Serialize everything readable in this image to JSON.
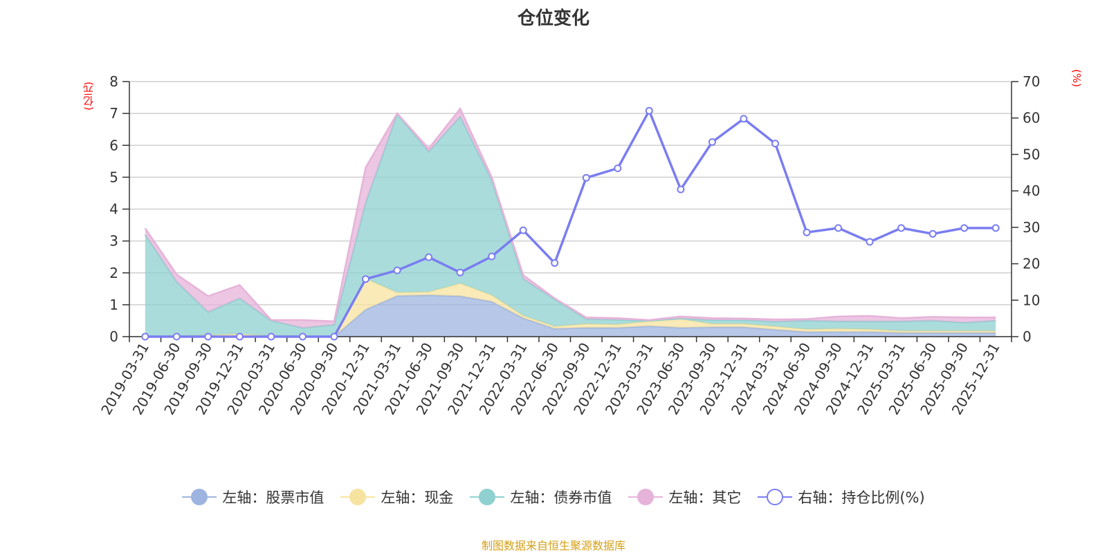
{
  "page": {
    "title": "仓位变化",
    "left_unit": "(亿元)",
    "right_unit": "(%)",
    "source_note": "制图数据来自恒生聚源数据库"
  },
  "legend": [
    {
      "label": "左轴：股票市值",
      "color": "#9db4e0",
      "shape": "filled-circle"
    },
    {
      "label": "左轴：现金",
      "color": "#f7e3a0",
      "shape": "filled-circle"
    },
    {
      "label": "左轴：债券市值",
      "color": "#8fd0d0",
      "shape": "filled-circle"
    },
    {
      "label": "左轴：其它",
      "color": "#e6b3d9",
      "shape": "filled-circle"
    },
    {
      "label": "右轴：持仓比例(%)",
      "color": "#7a7df0",
      "shape": "hollow-circle"
    }
  ],
  "chart_data": {
    "type": "area",
    "title": "仓位变化",
    "categories": [
      "2019-03-31",
      "2019-06-30",
      "2019-09-30",
      "2019-12-31",
      "2020-03-31",
      "2020-06-30",
      "2020-09-30",
      "2020-12-31",
      "2021-03-31",
      "2021-06-30",
      "2021-09-30",
      "2021-12-31",
      "2022-03-31",
      "2022-06-30",
      "2022-09-30",
      "2022-12-31",
      "2023-03-31",
      "2023-06-30",
      "2023-09-30",
      "2023-12-31",
      "2024-03-31",
      "2024-06-30",
      "2024-09-30",
      "2024-12-31",
      "2025-03-31",
      "2025-06-30",
      "2025-09-30",
      "2025-12-31"
    ],
    "left_axis": {
      "label": "(亿元)",
      "min": 0,
      "max": 8,
      "ticks": [
        0,
        1,
        2,
        3,
        4,
        5,
        6,
        7,
        8
      ]
    },
    "right_axis": {
      "label": "(%)",
      "min": 0,
      "max": 70,
      "ticks": [
        0,
        10,
        20,
        30,
        40,
        50,
        60,
        70
      ]
    },
    "stacked": true,
    "series": [
      {
        "name": "左轴：股票市值",
        "axis": "left",
        "type": "area",
        "color": "#9db4e0",
        "values": [
          0,
          0,
          0,
          0,
          0,
          0,
          0,
          0.85,
          1.28,
          1.3,
          1.27,
          1.1,
          0.58,
          0.25,
          0.28,
          0.28,
          0.33,
          0.28,
          0.3,
          0.3,
          0.22,
          0.15,
          0.15,
          0.15,
          0.12,
          0.12,
          0.12,
          0.12
        ]
      },
      {
        "name": "左轴：现金",
        "axis": "left",
        "type": "area",
        "color": "#f7e3a0",
        "values": [
          0,
          0,
          0.05,
          0.08,
          0.02,
          0.02,
          0,
          0.97,
          0.1,
          0.1,
          0.4,
          0.2,
          0.08,
          0.07,
          0.12,
          0.1,
          0.15,
          0.27,
          0.1,
          0.1,
          0.1,
          0.08,
          0.1,
          0.08,
          0.06,
          0.06,
          0.06,
          0.06
        ]
      },
      {
        "name": "左轴：债券市值",
        "axis": "left",
        "type": "area",
        "color": "#8fd0d0",
        "values": [
          3.2,
          1.72,
          0.72,
          1.12,
          0.48,
          0.25,
          0.37,
          2.38,
          5.6,
          4.4,
          5.23,
          3.6,
          1.15,
          0.85,
          0.15,
          0.15,
          0.02,
          0.02,
          0.12,
          0.12,
          0.15,
          0.27,
          0.23,
          0.25,
          0.3,
          0.32,
          0.26,
          0.32
        ]
      },
      {
        "name": "左轴：其它",
        "axis": "left",
        "type": "area",
        "color": "#e6b3d9",
        "values": [
          0.2,
          0.23,
          0.5,
          0.42,
          0.02,
          0.25,
          0.11,
          1.1,
          0.02,
          0.1,
          0.25,
          0.1,
          0.12,
          0.03,
          0.05,
          0.05,
          0.02,
          0.06,
          0.06,
          0.05,
          0.07,
          0.05,
          0.15,
          0.17,
          0.1,
          0.12,
          0.16,
          0.1
        ]
      },
      {
        "name": "右轴：持仓比例(%)",
        "axis": "right",
        "type": "line",
        "color": "#7a7df0",
        "values": [
          0,
          0,
          0,
          0,
          0,
          0,
          0,
          15.8,
          18.2,
          21.8,
          17.6,
          22,
          29.2,
          20.2,
          43.6,
          46.2,
          62,
          40.4,
          53.4,
          59.8,
          53,
          28.6,
          29.8,
          26,
          29.8,
          28.2,
          29.8,
          29.8
        ]
      }
    ],
    "grid": true,
    "legend_position": "bottom"
  }
}
